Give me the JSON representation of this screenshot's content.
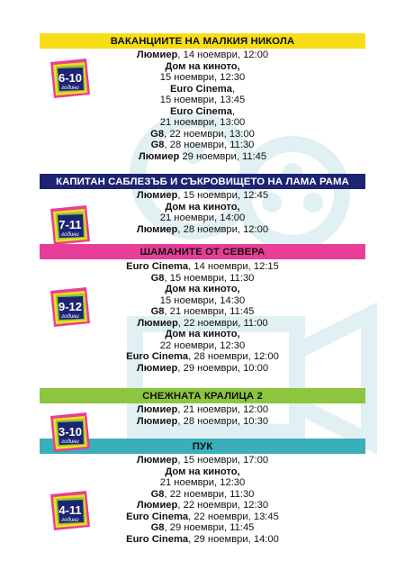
{
  "colors": {
    "yellow": "#f7dd16",
    "navy": "#1d2472",
    "magenta": "#e83e97",
    "green": "#8cc63f",
    "teal": "#3aafb9",
    "watermark": "#1e8fa0"
  },
  "sections": [
    {
      "title": "ВАКАНЦИИТЕ НА МАЛКИЯ НИКОЛА",
      "age": "6-10",
      "age_word": "години",
      "banner_color": "yellow",
      "banner_text_color": "#111111",
      "lines": [
        {
          "bold": "Люмиер",
          "rest": ", 14 ноември, 12:00"
        },
        {
          "bold": "Дом на киното,",
          "rest": ""
        },
        {
          "bold": "",
          "rest": "15 ноември, 12:30"
        },
        {
          "bold": "Euro Cinema",
          "rest": ","
        },
        {
          "bold": "",
          "rest": "15 ноември, 13:45"
        },
        {
          "bold": "Euro Cinema",
          "rest": ","
        },
        {
          "bold": "",
          "rest": "21 ноември, 13:00"
        },
        {
          "bold": "G8",
          "rest": ", 22 ноември, 13:00"
        },
        {
          "bold": "G8",
          "rest": ", 28 ноември, 11:30"
        },
        {
          "bold": "Люмиер",
          "rest": " 29 ноември, 11:45"
        }
      ]
    },
    {
      "title": "КАПИТАН САБЛЕЗЪБ И СЪКРОВИЩЕТО НА ЛАМА РАМА",
      "age": "7-11",
      "age_word": "години",
      "banner_color": "navy",
      "banner_text_color": "#ffffff",
      "lines": [
        {
          "bold": "Люмиер",
          "rest": ", 15 ноември, 12:45"
        },
        {
          "bold": "Дом на киното,",
          "rest": ""
        },
        {
          "bold": "",
          "rest": "21 ноември, 14:00"
        },
        {
          "bold": "Люмиер",
          "rest": ", 28 ноември, 12:00"
        }
      ]
    },
    {
      "title": "ШАМАНИТЕ ОТ СЕВЕРА",
      "age": "9-12",
      "age_word": "години",
      "banner_color": "magenta",
      "banner_text_color": "#111111",
      "lines": [
        {
          "bold": "Euro Cinema",
          "rest": ", 14 ноември, 12:15"
        },
        {
          "bold": "G8",
          "rest": ", 15 ноември, 11:30"
        },
        {
          "bold": "Дом на киното,",
          "rest": ""
        },
        {
          "bold": "",
          "rest": "15 ноември, 14:30"
        },
        {
          "bold": "G8",
          "rest": ", 21 ноември, 11:45"
        },
        {
          "bold": "Люмиер",
          "rest": ", 22 ноември, 11:00"
        },
        {
          "bold": "Дом на киното,",
          "rest": ""
        },
        {
          "bold": "",
          "rest": "22 ноември, 12:30"
        },
        {
          "bold": "Euro Cinema",
          "rest": ", 28 ноември, 12:00"
        },
        {
          "bold": "Люмиер",
          "rest": ", 29 ноември, 10:00"
        }
      ]
    },
    {
      "title": "СНЕЖНАТА КРАЛИЦА 2",
      "age": "3-10",
      "age_word": "години",
      "banner_color": "green",
      "banner_text_color": "#111111",
      "lines": [
        {
          "bold": "Люмиер",
          "rest": ", 21 ноември, 12:00"
        },
        {
          "bold": "Люмиер",
          "rest": ", 28 ноември, 10:30"
        }
      ]
    },
    {
      "title": "ПУК",
      "age": "4-11",
      "age_word": "години",
      "banner_color": "teal",
      "banner_text_color": "#111111",
      "lines": [
        {
          "bold": "Люмиер",
          "rest": ", 15 ноември, 17:00"
        },
        {
          "bold": "Дом на киното,",
          "rest": ""
        },
        {
          "bold": "",
          "rest": "21 ноември, 12:30"
        },
        {
          "bold": "G8",
          "rest": ", 22 ноември, 11:30"
        },
        {
          "bold": "Люмиер",
          "rest": ", 22 ноември, 12:30"
        },
        {
          "bold": "Euro Cinema",
          "rest": ", 22 ноември, 13:45"
        },
        {
          "bold": "G8",
          "rest": ", 29 ноември, 11:45"
        },
        {
          "bold": "Euro Cinema",
          "rest": ", 29 ноември, 14:00"
        }
      ]
    }
  ]
}
